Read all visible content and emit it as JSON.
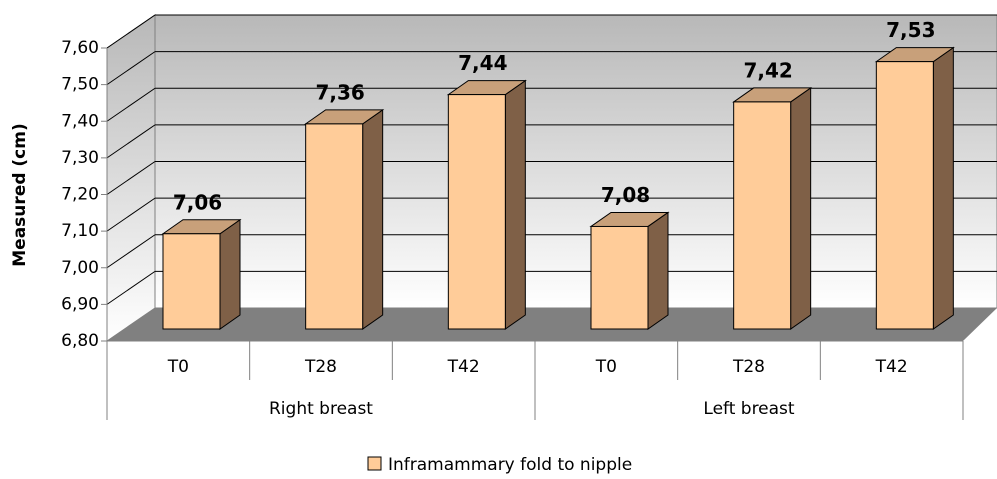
{
  "chart_data": {
    "type": "bar3d",
    "y_label": "Measured (cm)",
    "categories": [
      "T0",
      "T28",
      "T42",
      "T0",
      "T28",
      "T42"
    ],
    "groups": [
      "Right breast",
      "Left breast"
    ],
    "series": [
      {
        "name": "Inframammary fold to nipple",
        "color": "#ffcc99",
        "values": [
          7.06,
          7.36,
          7.44,
          7.08,
          7.42,
          7.53
        ],
        "value_labels": [
          "7,06",
          "7,36",
          "7,44",
          "7,08",
          "7,42",
          "7,53"
        ]
      }
    ],
    "ylim": [
      6.8,
      7.6
    ],
    "yticks": [
      {
        "value": 6.8,
        "label": "6,80"
      },
      {
        "value": 6.9,
        "label": "6,90"
      },
      {
        "value": 7.0,
        "label": "7,00"
      },
      {
        "value": 7.1,
        "label": "7,10"
      },
      {
        "value": 7.2,
        "label": "7,20"
      },
      {
        "value": 7.3,
        "label": "7,30"
      },
      {
        "value": 7.4,
        "label": "7,40"
      },
      {
        "value": 7.5,
        "label": "7,50"
      },
      {
        "value": 7.6,
        "label": "7,60"
      }
    ],
    "grid": true,
    "legend": "bottom"
  }
}
